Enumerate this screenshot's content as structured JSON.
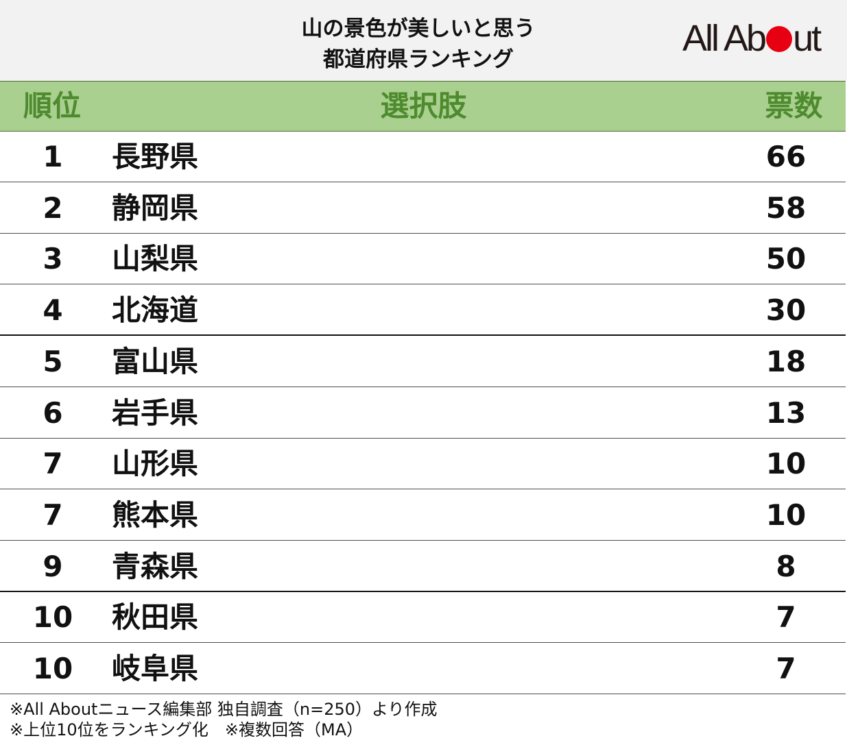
{
  "chart_data": {
    "type": "table",
    "title": [
      "山の景色が美しいと思う",
      "都道府県ランキング"
    ],
    "columns": {
      "rank": "順位",
      "choice": "選択肢",
      "votes": "票数"
    },
    "rows": [
      {
        "rank": "1",
        "name": "長野県",
        "votes": 66
      },
      {
        "rank": "2",
        "name": "静岡県",
        "votes": 58
      },
      {
        "rank": "3",
        "name": "山梨県",
        "votes": 50
      },
      {
        "rank": "4",
        "name": "北海道",
        "votes": 30
      },
      {
        "rank": "5",
        "name": "富山県",
        "votes": 18
      },
      {
        "rank": "6",
        "name": "岩手県",
        "votes": 13
      },
      {
        "rank": "7",
        "name": "山形県",
        "votes": 10
      },
      {
        "rank": "7",
        "name": "熊本県",
        "votes": 10
      },
      {
        "rank": "9",
        "name": "青森県",
        "votes": 8
      },
      {
        "rank": "10",
        "name": "秋田県",
        "votes": 7
      },
      {
        "rank": "10",
        "name": "岐阜県",
        "votes": 7
      }
    ],
    "notes": [
      "※All Aboutニュース編集部 独自調査（n=250）より作成",
      "※上位10位をランキング化　※複数回答（MA）"
    ]
  },
  "logo": {
    "text": "All About",
    "accent_color": "#e60012"
  },
  "colors": {
    "header_background": "#f2f2f2",
    "table_header_background": "#a9d08e",
    "table_header_text": "#4e8a2e"
  }
}
